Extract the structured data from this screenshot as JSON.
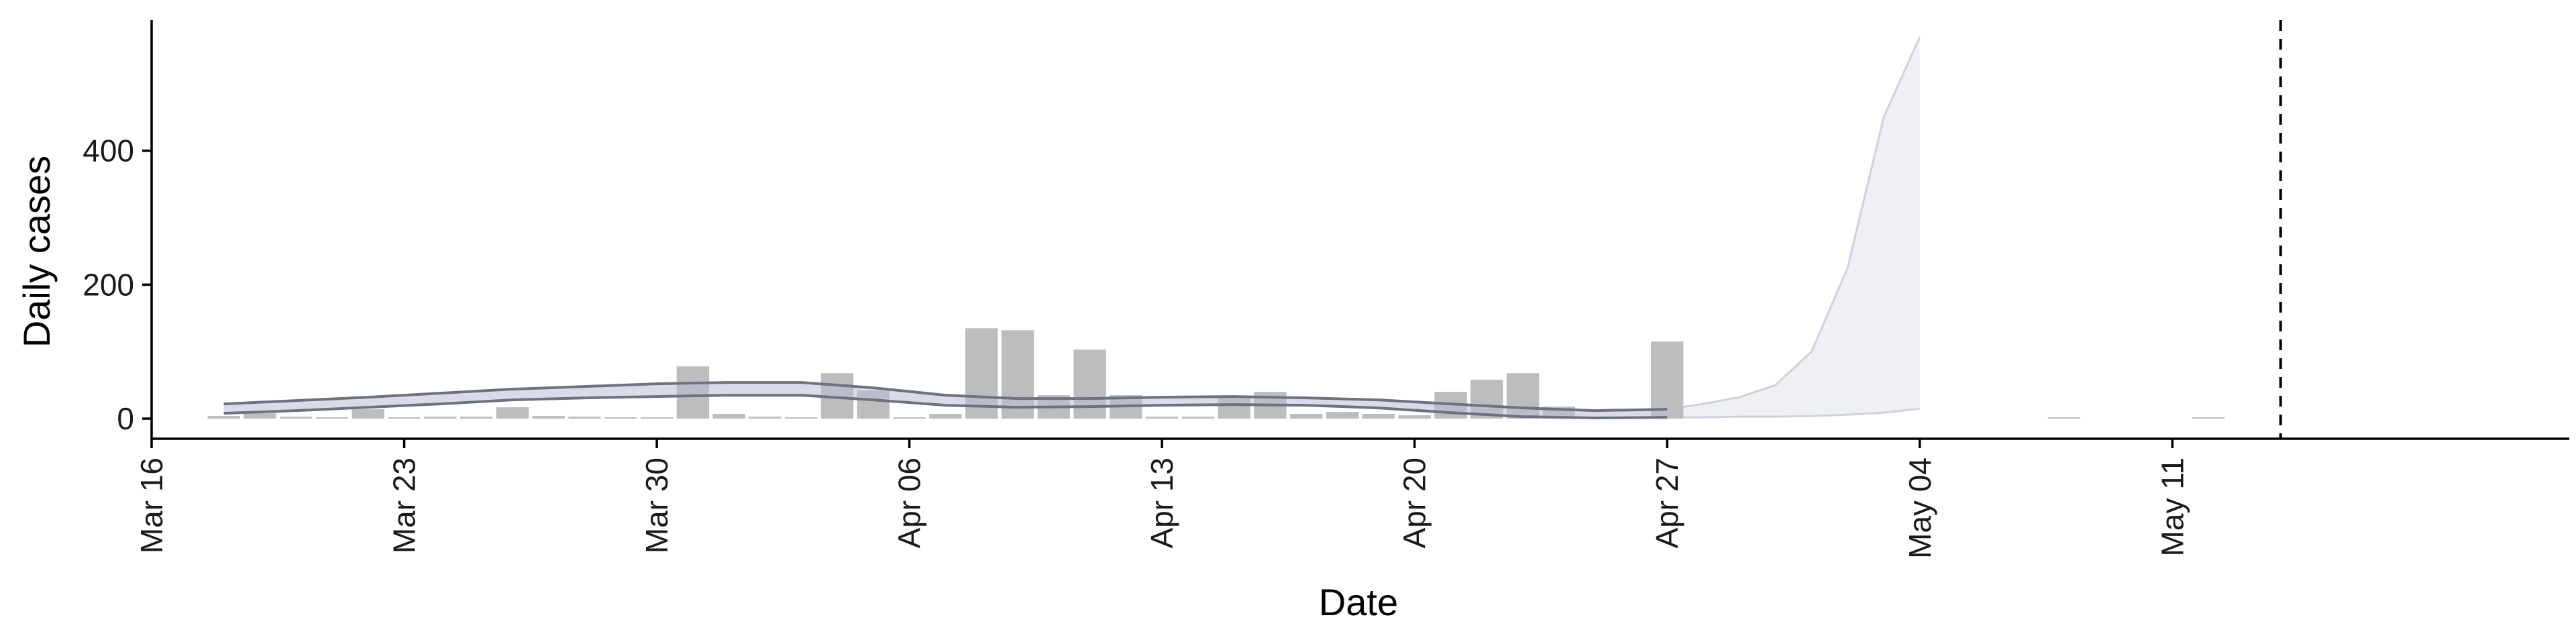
{
  "chart_data": {
    "type": "bar",
    "xlabel": "Date",
    "ylabel": "Daily cases",
    "x_ticks": [
      {
        "date": "2020-03-16",
        "label": "Mar 16"
      },
      {
        "date": "2020-03-23",
        "label": "Mar 23"
      },
      {
        "date": "2020-03-30",
        "label": "Mar 30"
      },
      {
        "date": "2020-04-06",
        "label": "Apr 06"
      },
      {
        "date": "2020-04-13",
        "label": "Apr 13"
      },
      {
        "date": "2020-04-20",
        "label": "Apr 20"
      },
      {
        "date": "2020-04-27",
        "label": "Apr 27"
      },
      {
        "date": "2020-05-04",
        "label": "May 04"
      },
      {
        "date": "2020-05-11",
        "label": "May 11"
      }
    ],
    "y_ticks": [
      0,
      200,
      400
    ],
    "xlim": [
      "2020-03-16",
      "2020-05-22"
    ],
    "ylim": [
      -30,
      595
    ],
    "grid": false,
    "vline_date": "2020-05-14",
    "colors": {
      "bar": "#bdbdbd",
      "band": "#b9c0d6",
      "band_line": "#6e7180",
      "forecast_fill": "#eef0f6",
      "forecast_line": "#cfd2da"
    },
    "bars": {
      "dates": [
        "2020-03-18",
        "2020-03-19",
        "2020-03-20",
        "2020-03-21",
        "2020-03-22",
        "2020-03-23",
        "2020-03-24",
        "2020-03-25",
        "2020-03-26",
        "2020-03-27",
        "2020-03-28",
        "2020-03-29",
        "2020-03-30",
        "2020-03-31",
        "2020-04-01",
        "2020-04-02",
        "2020-04-03",
        "2020-04-04",
        "2020-04-05",
        "2020-04-06",
        "2020-04-07",
        "2020-04-08",
        "2020-04-09",
        "2020-04-10",
        "2020-04-11",
        "2020-04-12",
        "2020-04-13",
        "2020-04-14",
        "2020-04-15",
        "2020-04-16",
        "2020-04-17",
        "2020-04-18",
        "2020-04-19",
        "2020-04-20",
        "2020-04-21",
        "2020-04-22",
        "2020-04-23",
        "2020-04-24",
        "2020-04-25",
        "2020-04-26",
        "2020-04-27",
        "2020-05-08",
        "2020-05-12"
      ],
      "values": [
        4,
        8,
        3,
        2,
        14,
        2,
        3,
        3,
        17,
        4,
        3,
        2,
        2,
        78,
        7,
        3,
        0,
        68,
        42,
        2,
        7,
        135,
        132,
        35,
        103,
        35,
        3,
        3,
        31,
        40,
        7,
        10,
        7,
        5,
        40,
        58,
        68,
        18,
        2,
        2,
        115,
        2,
        2
      ]
    },
    "fit_band": {
      "dates": [
        "2020-03-18",
        "2020-03-20",
        "2020-03-22",
        "2020-03-24",
        "2020-03-26",
        "2020-03-28",
        "2020-03-30",
        "2020-04-01",
        "2020-04-03",
        "2020-04-05",
        "2020-04-07",
        "2020-04-09",
        "2020-04-11",
        "2020-04-13",
        "2020-04-15",
        "2020-04-17",
        "2020-04-19",
        "2020-04-21",
        "2020-04-23",
        "2020-04-25",
        "2020-04-27"
      ],
      "lower": [
        8,
        12,
        17,
        22,
        28,
        31,
        33,
        35,
        35,
        28,
        20,
        17,
        18,
        20,
        21,
        20,
        16,
        9,
        3,
        1,
        2
      ],
      "upper": [
        22,
        27,
        32,
        38,
        44,
        48,
        52,
        54,
        54,
        46,
        35,
        30,
        30,
        32,
        33,
        31,
        28,
        22,
        16,
        12,
        14
      ]
    },
    "forecast": {
      "dates": [
        "2020-04-27",
        "2020-04-28",
        "2020-04-29",
        "2020-04-30",
        "2020-05-01",
        "2020-05-02",
        "2020-05-03",
        "2020-05-04"
      ],
      "lower": [
        2,
        2,
        3,
        3,
        4,
        6,
        9,
        15
      ],
      "upper": [
        14,
        22,
        32,
        50,
        100,
        225,
        450,
        570
      ]
    }
  }
}
